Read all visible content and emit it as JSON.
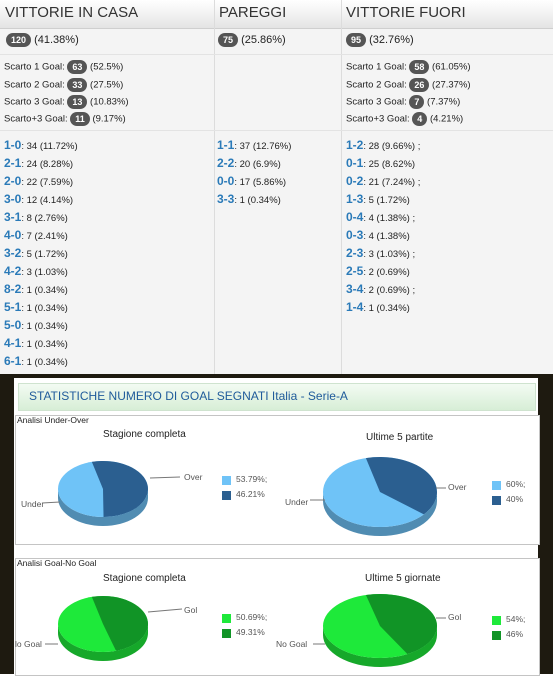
{
  "colors": {
    "score_blue": "#2a7ab8",
    "badge": "#555555",
    "under_light": "#6fc3f7",
    "over_dark": "#2b5f90",
    "goal_light": "#1ee93a",
    "goal_dark": "#119426",
    "title_blue": "#205b9b",
    "dark_bg": "#1e1a10"
  },
  "header": {
    "home": "VITTORIE IN CASA",
    "draw": "PAREGGI",
    "away": "VITTORIE FUORI"
  },
  "totals": {
    "home": {
      "count": "120",
      "pct": "(41.38%)"
    },
    "draw": {
      "count": "75",
      "pct": "(25.86%)"
    },
    "away": {
      "count": "95",
      "pct": "(32.76%)"
    }
  },
  "margins": {
    "home": [
      {
        "label": "Scarto 1 Goal:",
        "count": "63",
        "pct": "(52.5%)"
      },
      {
        "label": "Scarto 2 Goal:",
        "count": "33",
        "pct": "(27.5%)"
      },
      {
        "label": "Scarto 3 Goal:",
        "count": "13",
        "pct": "(10.83%)"
      },
      {
        "label": "Scarto+3 Goal:",
        "count": "11",
        "pct": "(9.17%)"
      }
    ],
    "away": [
      {
        "label": "Scarto 1 Goal:",
        "count": "58",
        "pct": "(61.05%)"
      },
      {
        "label": "Scarto 2 Goal:",
        "count": "26",
        "pct": "(27.37%)"
      },
      {
        "label": "Scarto 3 Goal:",
        "count": "7",
        "pct": "(7.37%)"
      },
      {
        "label": "Scarto+3 Goal:",
        "count": "4",
        "pct": "(4.21%)"
      }
    ]
  },
  "scores": {
    "home": [
      {
        "score": "1-0",
        "detail": ": 34 (11.72%)"
      },
      {
        "score": "2-1",
        "detail": ": 24 (8.28%)"
      },
      {
        "score": "2-0",
        "detail": ": 22 (7.59%)"
      },
      {
        "score": "3-0",
        "detail": ": 12 (4.14%)"
      },
      {
        "score": "3-1",
        "detail": ": 8 (2.76%)"
      },
      {
        "score": "4-0",
        "detail": ": 7 (2.41%)"
      },
      {
        "score": "3-2",
        "detail": ": 5 (1.72%)"
      },
      {
        "score": "4-2",
        "detail": ": 3 (1.03%)"
      },
      {
        "score": "8-2",
        "detail": ": 1 (0.34%)"
      },
      {
        "score": "5-1",
        "detail": ": 1 (0.34%)"
      },
      {
        "score": "5-0",
        "detail": ": 1 (0.34%)"
      },
      {
        "score": "4-1",
        "detail": ": 1 (0.34%)"
      },
      {
        "score": "6-1",
        "detail": ": 1 (0.34%)"
      }
    ],
    "draw": [
      {
        "score": "1-1",
        "detail": ": 37 (12.76%)"
      },
      {
        "score": "2-2",
        "detail": ": 20 (6.9%)"
      },
      {
        "score": "0-0",
        "detail": ": 17 (5.86%)"
      },
      {
        "score": "3-3",
        "detail": ": 1 (0.34%)"
      }
    ],
    "away": [
      {
        "score": "1-2",
        "detail": ": 28 (9.66%) ;"
      },
      {
        "score": "0-1",
        "detail": ": 25 (8.62%)"
      },
      {
        "score": "0-2",
        "detail": ": 21 (7.24%) ;"
      },
      {
        "score": "1-3",
        "detail": ": 5 (1.72%)"
      },
      {
        "score": "0-4",
        "detail": ": 4 (1.38%) ;"
      },
      {
        "score": "0-3",
        "detail": ": 4 (1.38%)"
      },
      {
        "score": "2-3",
        "detail": ": 3 (1.03%) ;"
      },
      {
        "score": "2-5",
        "detail": ": 2 (0.69%)"
      },
      {
        "score": "3-4",
        "detail": ": 2 (0.69%) ;"
      },
      {
        "score": "1-4",
        "detail": ": 1 (0.34%)"
      }
    ]
  },
  "stats": {
    "title": "STATISTICHE NUMERO DI GOAL SEGNATI Italia - Serie-A",
    "under_over": {
      "section_label": "Analisi Under-Over",
      "left_title": "Stagione completa",
      "right_title": "Ultime 5 partite",
      "over_label": "Over",
      "under_label": "Under"
    },
    "goal_nogoal": {
      "section_label": "Analisi Goal-No Goal",
      "left_title": "Stagione completa",
      "right_title": "Ultime 5 giornate",
      "goal_label": "Gol",
      "nogoal_left": "lo Goal",
      "nogoal_right": "No Goal"
    }
  },
  "chart_data": [
    {
      "type": "pie",
      "title": "Stagione completa",
      "categories": [
        "Over",
        "Under"
      ],
      "values": [
        53.79,
        46.21
      ],
      "legend": [
        "53.79%;",
        "46.21%"
      ]
    },
    {
      "type": "pie",
      "title": "Ultime 5 partite",
      "categories": [
        "Over",
        "Under"
      ],
      "values": [
        40,
        60
      ],
      "legend": [
        "60%;",
        "40%"
      ]
    },
    {
      "type": "pie",
      "title": "Stagione completa",
      "categories": [
        "Gol",
        "No Goal"
      ],
      "values": [
        49.31,
        50.69
      ],
      "legend": [
        "50.69%;",
        "49.31%"
      ]
    },
    {
      "type": "pie",
      "title": "Ultime 5 giornate",
      "categories": [
        "Gol",
        "No Goal"
      ],
      "values": [
        46,
        54
      ],
      "legend": [
        "54%;",
        "46%"
      ]
    }
  ]
}
